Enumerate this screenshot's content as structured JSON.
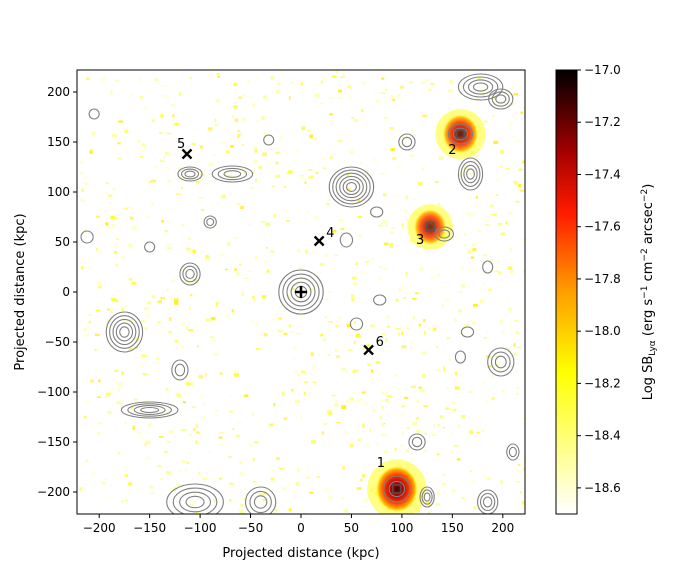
{
  "chart_data": {
    "type": "heatmap",
    "title": "",
    "xlabel": "Projected distance (kpc)",
    "ylabel": "Projected distance (kpc)",
    "xlim": [
      -222,
      222
    ],
    "ylim": [
      -222,
      222
    ],
    "x_ticks": [
      -200,
      -150,
      -100,
      -50,
      0,
      50,
      100,
      150,
      200
    ],
    "y_ticks": [
      -200,
      -150,
      -100,
      -50,
      0,
      50,
      100,
      150,
      200
    ],
    "x_tick_labels": [
      "−200",
      "−150",
      "−100",
      "−50",
      "0",
      "50",
      "100",
      "150",
      "200"
    ],
    "y_tick_labels": [
      "−200",
      "−150",
      "−100",
      "−50",
      "0",
      "50",
      "100",
      "150",
      "200"
    ],
    "colorbar": {
      "label_main": "Log SB",
      "label_sub": "Lyα",
      "label_unit": " (erg s",
      "label_exp1": "−1",
      "label_unit2": " cm",
      "label_exp2": "−2",
      "label_unit3": " arcsec",
      "label_exp3": "−2",
      "label_close": ")",
      "vmin": -18.7,
      "vmax": -17.0,
      "ticks": [
        -18.6,
        -18.4,
        -18.2,
        -18.0,
        -17.8,
        -17.6,
        -17.4,
        -17.2,
        -17.0
      ],
      "tick_labels": [
        "−18.6",
        "−18.4",
        "−18.2",
        "−18.0",
        "−17.8",
        "−17.6",
        "−17.4",
        "−17.2",
        "−17.0"
      ],
      "colormap": "afmhot_r"
    },
    "central_source": {
      "x": 0,
      "y": 0,
      "marker": "+"
    },
    "markers": [
      {
        "label": "1",
        "x": 95,
        "y": -197,
        "symbol": "square"
      },
      {
        "label": "2",
        "x": 158,
        "y": 158,
        "symbol": "square"
      },
      {
        "label": "3",
        "x": 128,
        "y": 65,
        "symbol": "square"
      },
      {
        "label": "4",
        "x": 18,
        "y": 51,
        "symbol": "x"
      },
      {
        "label": "5",
        "x": -113,
        "y": 138,
        "symbol": "x"
      },
      {
        "label": "6",
        "x": 67,
        "y": -58,
        "symbol": "x"
      }
    ],
    "bright_emission": [
      {
        "x": 95,
        "y": -197,
        "level": -17.1
      },
      {
        "x": 158,
        "y": 158,
        "level": -17.5
      },
      {
        "x": 128,
        "y": 65,
        "level": -17.7
      }
    ],
    "contour_sources": [
      {
        "x": 0,
        "y": 0,
        "rx": 22,
        "ry": 22,
        "levels": 5
      },
      {
        "x": 50,
        "y": 105,
        "rx": 22,
        "ry": 20,
        "levels": 6
      },
      {
        "x": 178,
        "y": 205,
        "rx": 22,
        "ry": 13,
        "levels": 4
      },
      {
        "x": 198,
        "y": 193,
        "rx": 12,
        "ry": 10,
        "levels": 3
      },
      {
        "x": 168,
        "y": 118,
        "rx": 12,
        "ry": 16,
        "levels": 4
      },
      {
        "x": -175,
        "y": -40,
        "rx": 18,
        "ry": 20,
        "levels": 5
      },
      {
        "x": -150,
        "y": -118,
        "rx": 28,
        "ry": 8,
        "levels": 4
      },
      {
        "x": -68,
        "y": 118,
        "rx": 20,
        "ry": 8,
        "levels": 3
      },
      {
        "x": -110,
        "y": 118,
        "rx": 12,
        "ry": 7,
        "levels": 3
      },
      {
        "x": -110,
        "y": 18,
        "rx": 10,
        "ry": 11,
        "levels": 3
      },
      {
        "x": -120,
        "y": -78,
        "rx": 8,
        "ry": 10,
        "levels": 2
      },
      {
        "x": 198,
        "y": -70,
        "rx": 13,
        "ry": 14,
        "levels": 3
      },
      {
        "x": 105,
        "y": 150,
        "rx": 8,
        "ry": 8,
        "levels": 2
      },
      {
        "x": 142,
        "y": 58,
        "rx": 9,
        "ry": 7,
        "levels": 2
      },
      {
        "x": -105,
        "y": -210,
        "rx": 28,
        "ry": 18,
        "levels": 4
      },
      {
        "x": -40,
        "y": -210,
        "rx": 15,
        "ry": 15,
        "levels": 3
      },
      {
        "x": 125,
        "y": -205,
        "rx": 7,
        "ry": 10,
        "levels": 3
      },
      {
        "x": 185,
        "y": -210,
        "rx": 10,
        "ry": 12,
        "levels": 3
      },
      {
        "x": 115,
        "y": -150,
        "rx": 8,
        "ry": 8,
        "levels": 2
      },
      {
        "x": 95,
        "y": -197,
        "rx": 13,
        "ry": 13,
        "levels": 2
      },
      {
        "x": 158,
        "y": 158,
        "rx": 12,
        "ry": 10,
        "levels": 2
      },
      {
        "x": -150,
        "y": 45,
        "rx": 5,
        "ry": 5,
        "levels": 1
      },
      {
        "x": -212,
        "y": 55,
        "rx": 6,
        "ry": 6,
        "levels": 1
      },
      {
        "x": -90,
        "y": 70,
        "rx": 6,
        "ry": 6,
        "levels": 2
      },
      {
        "x": 45,
        "y": 52,
        "rx": 6,
        "ry": 7,
        "levels": 1
      },
      {
        "x": 75,
        "y": 80,
        "rx": 6,
        "ry": 5,
        "levels": 1
      },
      {
        "x": 165,
        "y": -40,
        "rx": 6,
        "ry": 5,
        "levels": 1
      },
      {
        "x": 158,
        "y": -65,
        "rx": 5,
        "ry": 6,
        "levels": 1
      },
      {
        "x": 55,
        "y": -32,
        "rx": 6,
        "ry": 6,
        "levels": 1
      },
      {
        "x": 78,
        "y": -8,
        "rx": 6,
        "ry": 5,
        "levels": 1
      },
      {
        "x": 185,
        "y": 25,
        "rx": 5,
        "ry": 6,
        "levels": 1
      },
      {
        "x": 210,
        "y": -160,
        "rx": 6,
        "ry": 8,
        "levels": 2
      },
      {
        "x": -32,
        "y": 152,
        "rx": 5,
        "ry": 5,
        "levels": 1
      },
      {
        "x": -205,
        "y": 178,
        "rx": 5,
        "ry": 5,
        "levels": 1
      }
    ]
  }
}
